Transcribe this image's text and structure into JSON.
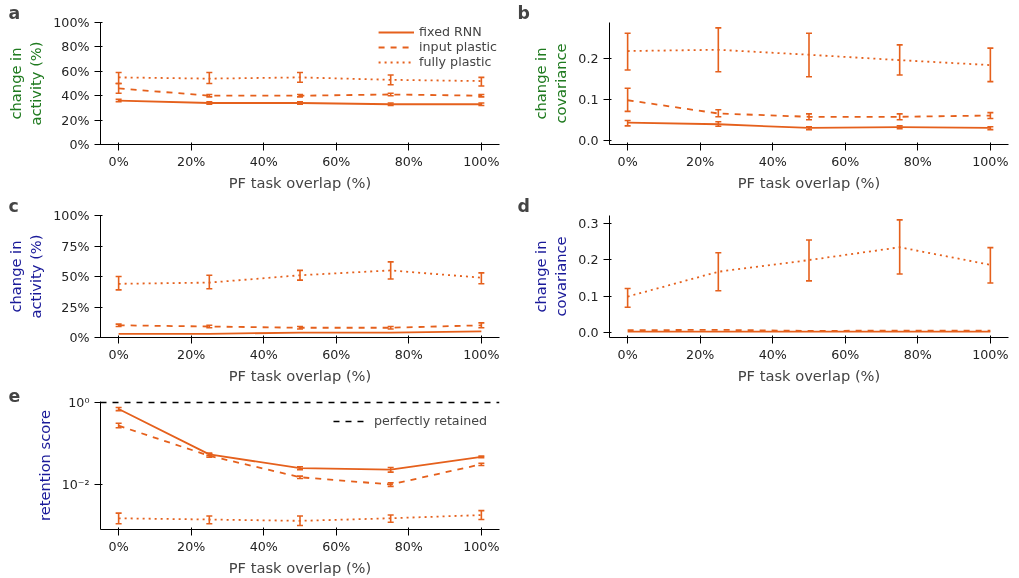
{
  "chart_data": [
    {
      "type": "line",
      "title": "a",
      "xlabel": "PF task overlap (%)",
      "ylabel": "change in\nactivity (%)",
      "x": [
        0,
        25,
        50,
        75,
        100
      ],
      "xlim": [
        -5,
        105
      ],
      "xticks": [
        {
          "value": 0,
          "label": "0%"
        },
        {
          "value": 20,
          "label": "20%"
        },
        {
          "value": 40,
          "label": "40%"
        },
        {
          "value": 60,
          "label": "60%"
        },
        {
          "value": 80,
          "label": "80%"
        },
        {
          "value": 100,
          "label": "100%"
        }
      ],
      "ylim": [
        0,
        100
      ],
      "yticks": [
        {
          "value": 0,
          "label": "0%"
        },
        {
          "value": 20,
          "label": "20%"
        },
        {
          "value": 40,
          "label": "40%"
        },
        {
          "value": 60,
          "label": "60%"
        },
        {
          "value": 80,
          "label": "80%"
        },
        {
          "value": 100,
          "label": "100%"
        }
      ],
      "grid": false,
      "legend": "top right",
      "marker": "none",
      "series": [
        {
          "name": "fixed RNN",
          "color": "#e5601c",
          "line_style": "solid",
          "values": [
            36,
            34,
            34,
            33,
            33
          ],
          "errors": [
            [
              35,
              37
            ],
            [
              33,
              35
            ],
            [
              33,
              35
            ],
            [
              32,
              34
            ],
            [
              32,
              34
            ]
          ]
        },
        {
          "name": "input plastic",
          "color": "#e5601c",
          "line_style": "dashed",
          "values": [
            46,
            40,
            40,
            41,
            40
          ],
          "errors": [
            [
              42,
              50
            ],
            [
              39,
              41
            ],
            [
              39,
              41
            ],
            [
              40,
              42
            ],
            [
              39,
              41
            ]
          ]
        },
        {
          "name": "fully plastic",
          "color": "#e5601c",
          "line_style": "dotted",
          "values": [
            55,
            54,
            55,
            53,
            52
          ],
          "errors": [
            [
              50,
              59
            ],
            [
              50,
              59
            ],
            [
              51,
              59
            ],
            [
              49,
              57
            ],
            [
              48,
              55
            ]
          ]
        }
      ]
    },
    {
      "type": "line",
      "title": "b",
      "xlabel": "PF task overlap (%)",
      "ylabel": "change in\ncovariance",
      "x": [
        0,
        25,
        50,
        75,
        100
      ],
      "xlim": [
        -5,
        105
      ],
      "xticks": [
        {
          "value": 0,
          "label": "0%"
        },
        {
          "value": 20,
          "label": "20%"
        },
        {
          "value": 40,
          "label": "40%"
        },
        {
          "value": 60,
          "label": "60%"
        },
        {
          "value": 80,
          "label": "80%"
        },
        {
          "value": 100,
          "label": "100%"
        }
      ],
      "ylim": [
        -0.009,
        0.286
      ],
      "yticks": [
        {
          "value": 0,
          "label": "0.0"
        },
        {
          "value": 0.1,
          "label": "0.1"
        },
        {
          "value": 0.2,
          "label": "0.2"
        }
      ],
      "grid": false,
      "marker": "none",
      "series": [
        {
          "color": "#e5601c",
          "line_style": "solid",
          "values": [
            0.044,
            0.04,
            0.031,
            0.033,
            0.031
          ],
          "errors": [
            [
              0.036,
              0.049
            ],
            [
              0.035,
              0.046
            ],
            [
              0.027,
              0.034
            ],
            [
              0.029,
              0.036
            ],
            [
              0.027,
              0.034
            ]
          ]
        },
        {
          "color": "#e5601c",
          "line_style": "dashed",
          "values": [
            0.098,
            0.066,
            0.058,
            0.058,
            0.061
          ],
          "errors": [
            [
              0.071,
              0.127
            ],
            [
              0.058,
              0.075
            ],
            [
              0.051,
              0.065
            ],
            [
              0.051,
              0.065
            ],
            [
              0.054,
              0.068
            ]
          ]
        },
        {
          "color": "#e5601c",
          "line_style": "dotted",
          "values": [
            0.217,
            0.22,
            0.208,
            0.195,
            0.183
          ],
          "errors": [
            [
              0.171,
              0.26
            ],
            [
              0.167,
              0.273
            ],
            [
              0.155,
              0.26
            ],
            [
              0.159,
              0.232
            ],
            [
              0.143,
              0.224
            ]
          ]
        }
      ]
    },
    {
      "type": "line",
      "title": "c",
      "xlabel": "PF task overlap (%)",
      "ylabel": "change in\nactivity (%)",
      "x": [
        0,
        25,
        50,
        75,
        100
      ],
      "xlim": [
        -5,
        105
      ],
      "xticks": [
        {
          "value": 0,
          "label": "0%"
        },
        {
          "value": 20,
          "label": "20%"
        },
        {
          "value": 40,
          "label": "40%"
        },
        {
          "value": 60,
          "label": "60%"
        },
        {
          "value": 80,
          "label": "80%"
        },
        {
          "value": 100,
          "label": "100%"
        }
      ],
      "ylim": [
        0,
        100
      ],
      "yticks": [
        {
          "value": 0,
          "label": "0%"
        },
        {
          "value": 25,
          "label": "25%"
        },
        {
          "value": 50,
          "label": "50%"
        },
        {
          "value": 75,
          "label": "75%"
        },
        {
          "value": 100,
          "label": "100%"
        }
      ],
      "grid": false,
      "marker": "none",
      "series": [
        {
          "color": "#e5601c",
          "line_style": "solid",
          "values": [
            3,
            3,
            4,
            4,
            5
          ]
        },
        {
          "color": "#e5601c",
          "line_style": "dashed",
          "values": [
            10,
            9,
            8,
            8,
            10
          ],
          "errors": [
            [
              9,
              11
            ],
            [
              8,
              10
            ],
            [
              7,
              9
            ],
            [
              7,
              9
            ],
            [
              8,
              12
            ]
          ]
        },
        {
          "color": "#e5601c",
          "line_style": "dotted",
          "values": [
            44,
            45,
            51,
            55,
            49
          ],
          "errors": [
            [
              39,
              50
            ],
            [
              40,
              51
            ],
            [
              47,
              55
            ],
            [
              48,
              62
            ],
            [
              44,
              53
            ]
          ]
        }
      ]
    },
    {
      "type": "line",
      "title": "d",
      "xlabel": "PF task overlap (%)",
      "ylabel": "change in\ncovariance",
      "x": [
        0,
        25,
        50,
        75,
        100
      ],
      "xlim": [
        -5,
        105
      ],
      "xticks": [
        {
          "value": 0,
          "label": "0%"
        },
        {
          "value": 20,
          "label": "20%"
        },
        {
          "value": 40,
          "label": "40%"
        },
        {
          "value": 60,
          "label": "60%"
        },
        {
          "value": 80,
          "label": "80%"
        },
        {
          "value": 100,
          "label": "100%"
        }
      ],
      "ylim": [
        -0.013,
        0.321
      ],
      "yticks": [
        {
          "value": 0,
          "label": "0.0"
        },
        {
          "value": 0.1,
          "label": "0.1"
        },
        {
          "value": 0.2,
          "label": "0.2"
        },
        {
          "value": 0.3,
          "label": "0.3"
        }
      ],
      "grid": false,
      "marker": "none",
      "series": [
        {
          "color": "#e5601c",
          "line_style": "solid",
          "values": [
            0.003,
            0.003,
            0.003,
            0.003,
            0.003
          ]
        },
        {
          "color": "#e5601c",
          "line_style": "dashed",
          "values": [
            0.007,
            0.008,
            0.005,
            0.006,
            0.006
          ]
        },
        {
          "color": "#e5601c",
          "line_style": "dotted",
          "values": [
            0.099,
            0.167,
            0.199,
            0.234,
            0.186
          ],
          "errors": [
            [
              0.07,
              0.121
            ],
            [
              0.115,
              0.219
            ],
            [
              0.142,
              0.254
            ],
            [
              0.161,
              0.309
            ],
            [
              0.136,
              0.233
            ]
          ]
        }
      ]
    },
    {
      "type": "line",
      "title": "e",
      "xlabel": "PF task overlap (%)",
      "ylabel": "retention score",
      "log": "y",
      "x": [
        0,
        25,
        50,
        75,
        100
      ],
      "xlim": [
        -5,
        105
      ],
      "xticks": [
        {
          "value": 0,
          "label": "0%"
        },
        {
          "value": 20,
          "label": "20%"
        },
        {
          "value": 40,
          "label": "40%"
        },
        {
          "value": 60,
          "label": "60%"
        },
        {
          "value": 80,
          "label": "80%"
        },
        {
          "value": 100,
          "label": "100%"
        }
      ],
      "ylim": [
        0.0008,
        1.05
      ],
      "yticks": [
        {
          "value": 0.01,
          "label": "10⁻²"
        },
        {
          "value": 1,
          "label": "10⁰"
        }
      ],
      "grid": false,
      "legend": "top right",
      "marker": "none",
      "ref_lines": [
        {
          "axis": "y",
          "value": 1,
          "label": "perfectly retained",
          "color": "#000000",
          "line_style": "dashed"
        }
      ],
      "series": [
        {
          "color": "#e5601c",
          "line_style": "solid",
          "values": [
            0.69,
            0.054,
            0.025,
            0.023,
            0.047
          ],
          "errors": [
            [
              0.63,
              0.75
            ],
            [
              0.05,
              0.058
            ],
            [
              0.023,
              0.027
            ],
            [
              0.02,
              0.026
            ],
            [
              0.045,
              0.049
            ]
          ]
        },
        {
          "color": "#e5601c",
          "line_style": "dashed",
          "values": [
            0.27,
            0.05,
            0.015,
            0.01,
            0.031
          ],
          "errors": [
            [
              0.24,
              0.31
            ],
            [
              0.046,
              0.056
            ],
            [
              0.014,
              0.016
            ],
            [
              0.009,
              0.011
            ],
            [
              0.029,
              0.033
            ]
          ]
        },
        {
          "color": "#e5601c",
          "line_style": "dotted",
          "values": [
            0.0015,
            0.0014,
            0.0013,
            0.0015,
            0.0018
          ],
          "errors": [
            [
              0.0011,
              0.002
            ],
            [
              0.0011,
              0.0017
            ],
            [
              0.001,
              0.0017
            ],
            [
              0.0012,
              0.0018
            ],
            [
              0.0014,
              0.0023
            ]
          ]
        }
      ]
    }
  ]
}
